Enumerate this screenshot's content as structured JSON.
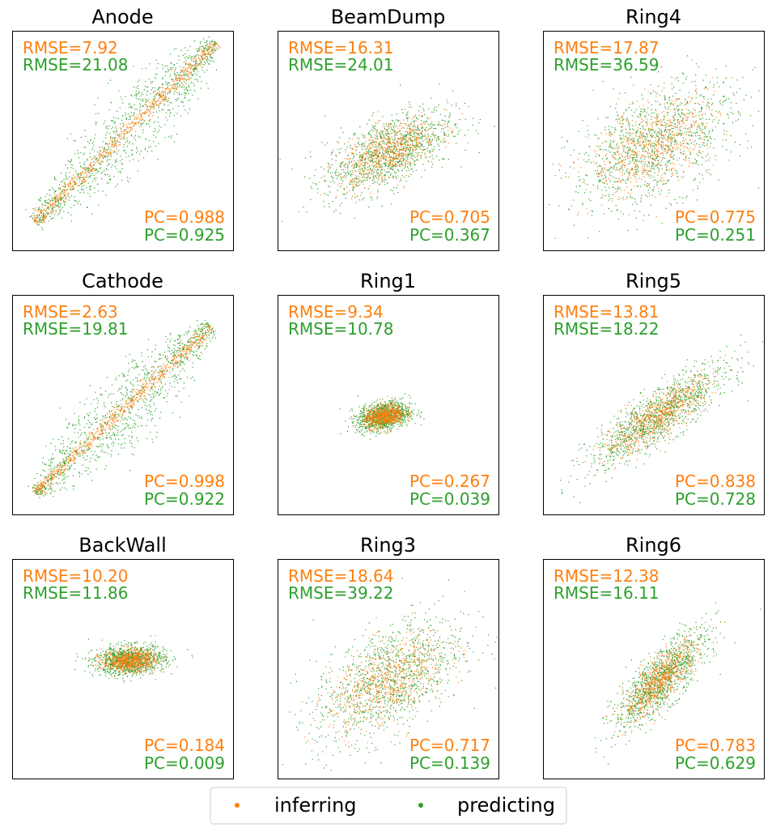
{
  "figure": {
    "legend": {
      "location": "bottom-center",
      "entries": [
        {
          "label": "inferring",
          "color": "#ff7f0e"
        },
        {
          "label": "predicting",
          "color": "#2ca02c"
        }
      ]
    }
  },
  "chart_data": [
    {
      "type": "scatter",
      "title": "Anode",
      "inferring": {
        "rmse_label": "RMSE=7.92",
        "pc_label": "PC=0.988",
        "pc": 0.988
      },
      "predicting": {
        "rmse_label": "RMSE=21.08",
        "pc_label": "PC=0.925",
        "pc": 0.925
      },
      "xlabel": "",
      "ylabel": "",
      "ticks": "none"
    },
    {
      "type": "scatter",
      "title": "BeamDump",
      "inferring": {
        "rmse_label": "RMSE=16.31",
        "pc_label": "PC=0.705",
        "pc": 0.705
      },
      "predicting": {
        "rmse_label": "RMSE=24.01",
        "pc_label": "PC=0.367",
        "pc": 0.367
      },
      "xlabel": "",
      "ylabel": "",
      "ticks": "none"
    },
    {
      "type": "scatter",
      "title": "Ring4",
      "inferring": {
        "rmse_label": "RMSE=17.87",
        "pc_label": "PC=0.775",
        "pc": 0.775
      },
      "predicting": {
        "rmse_label": "RMSE=36.59",
        "pc_label": "PC=0.251",
        "pc": 0.251
      },
      "xlabel": "",
      "ylabel": "",
      "ticks": "none"
    },
    {
      "type": "scatter",
      "title": "Cathode",
      "inferring": {
        "rmse_label": "RMSE=2.63",
        "pc_label": "PC=0.998",
        "pc": 0.998
      },
      "predicting": {
        "rmse_label": "RMSE=19.81",
        "pc_label": "PC=0.922",
        "pc": 0.922
      },
      "xlabel": "",
      "ylabel": "",
      "ticks": "none"
    },
    {
      "type": "scatter",
      "title": "Ring1",
      "inferring": {
        "rmse_label": "RMSE=9.34",
        "pc_label": "PC=0.267",
        "pc": 0.267
      },
      "predicting": {
        "rmse_label": "RMSE=10.78",
        "pc_label": "PC=0.039",
        "pc": 0.039
      },
      "xlabel": "",
      "ylabel": "",
      "ticks": "none"
    },
    {
      "type": "scatter",
      "title": "Ring5",
      "inferring": {
        "rmse_label": "RMSE=13.81",
        "pc_label": "PC=0.838",
        "pc": 0.838
      },
      "predicting": {
        "rmse_label": "RMSE=18.22",
        "pc_label": "PC=0.728",
        "pc": 0.728
      },
      "xlabel": "",
      "ylabel": "",
      "ticks": "none"
    },
    {
      "type": "scatter",
      "title": "BackWall",
      "inferring": {
        "rmse_label": "RMSE=10.20",
        "pc_label": "PC=0.184",
        "pc": 0.184
      },
      "predicting": {
        "rmse_label": "RMSE=11.86",
        "pc_label": "PC=0.009",
        "pc": 0.009
      },
      "xlabel": "",
      "ylabel": "",
      "ticks": "none"
    },
    {
      "type": "scatter",
      "title": "Ring3",
      "inferring": {
        "rmse_label": "RMSE=18.64",
        "pc_label": "PC=0.717",
        "pc": 0.717
      },
      "predicting": {
        "rmse_label": "RMSE=39.22",
        "pc_label": "PC=0.139",
        "pc": 0.139
      },
      "xlabel": "",
      "ylabel": "",
      "ticks": "none"
    },
    {
      "type": "scatter",
      "title": "Ring6",
      "inferring": {
        "rmse_label": "RMSE=12.38",
        "pc_label": "PC=0.783",
        "pc": 0.783
      },
      "predicting": {
        "rmse_label": "RMSE=16.11",
        "pc_label": "PC=0.629",
        "pc": 0.629
      },
      "xlabel": "",
      "ylabel": "",
      "ticks": "none"
    }
  ]
}
